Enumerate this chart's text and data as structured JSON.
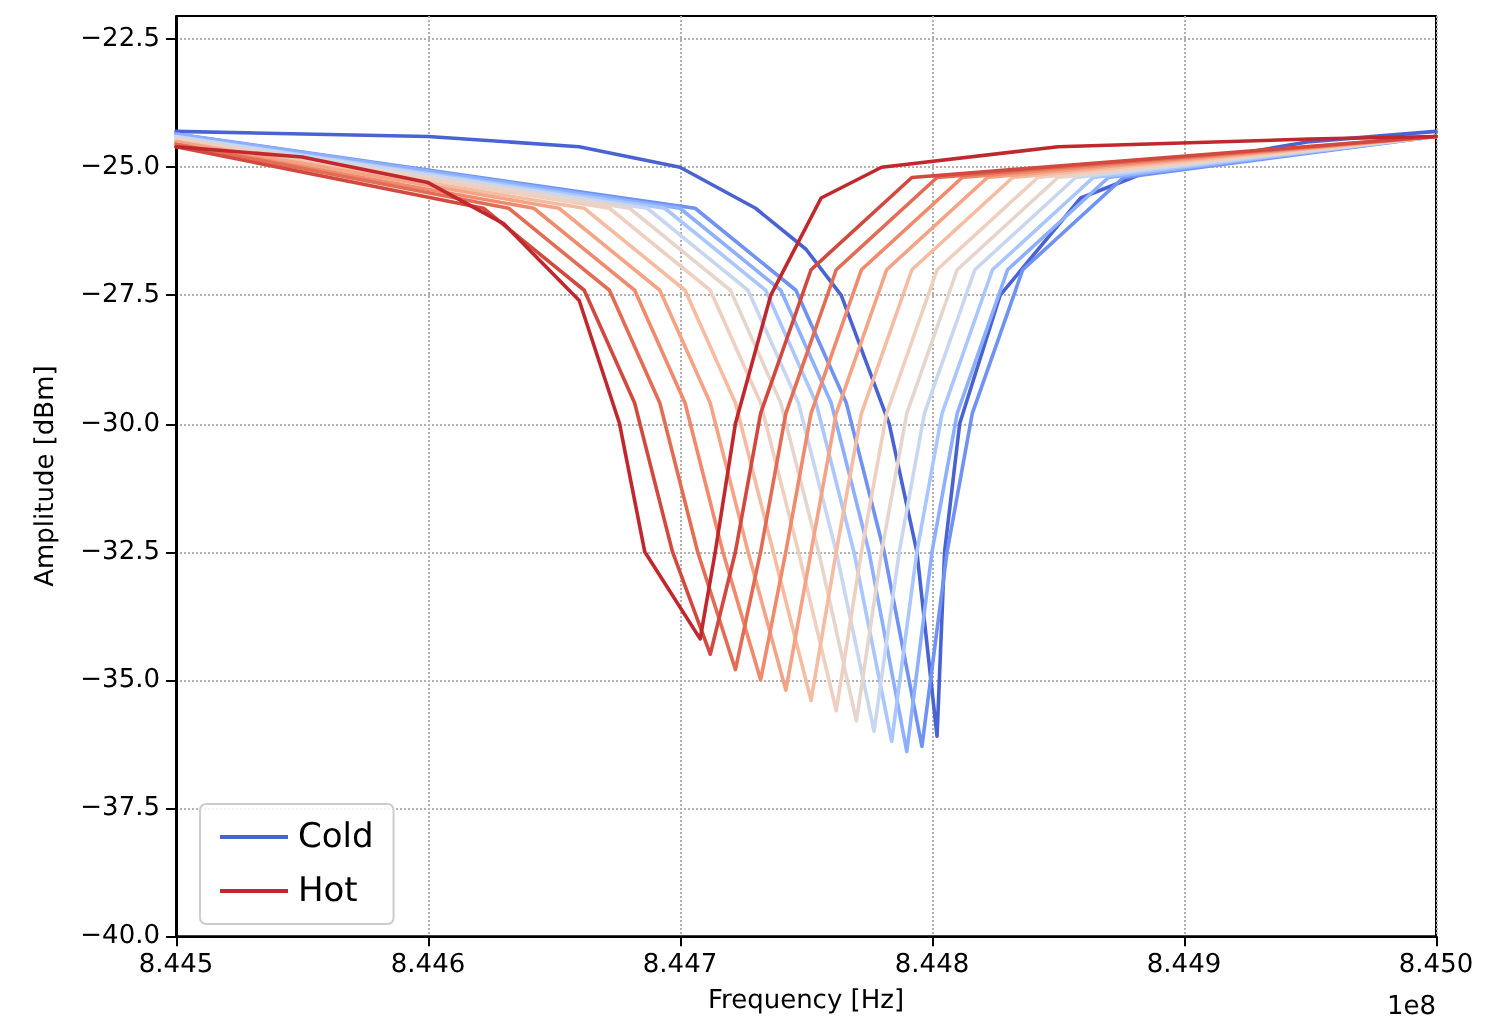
{
  "chart_data": {
    "type": "line",
    "xlabel": "Frequency [Hz]",
    "ylabel": "Amplitude [dBm]",
    "annotations": [
      "1e8"
    ],
    "xlim": [
      8.445,
      8.45
    ],
    "xticks": [
      8.445,
      8.446,
      8.447,
      8.448,
      8.449,
      {
        "value": 8.45,
        "label": "8.450"
      }
    ],
    "ylim": [
      -40,
      -22.05
    ],
    "yticks": [
      {
        "value": -40,
        "label": "−40.0"
      },
      {
        "value": -37.5,
        "label": "−37.5"
      },
      {
        "value": -35,
        "label": "−35.0"
      },
      {
        "value": -32.5,
        "label": "−32.5"
      },
      {
        "value": -30,
        "label": "−30.0"
      },
      {
        "value": -27.5,
        "label": "−27.5"
      },
      {
        "value": -25,
        "label": "−25.0"
      },
      {
        "value": -22.5,
        "label": "−22.5"
      }
    ],
    "grid": true,
    "legend": "bottom left",
    "marker": "none",
    "line_style": "solid",
    "series": [
      {
        "name": "Cold",
        "color": "#4a63d3",
        "x": [
          8.445,
          8.446,
          8.4466,
          8.447,
          8.4473,
          8.4475,
          8.44764,
          8.44783,
          8.44794,
          8.44802,
          8.44805,
          8.44811,
          8.44827,
          8.44859,
          8.4489,
          8.4495,
          8.45
        ],
        "values": [
          -24.3,
          -24.4,
          -24.6,
          -25.0,
          -25.8,
          -26.6,
          -27.5,
          -30.0,
          -32.5,
          -36.1,
          -32.5,
          -30.0,
          -27.5,
          -25.6,
          -25.0,
          -24.5,
          -24.3
        ]
      },
      {
        "color": "#6f92f3",
        "x": [
          8.445,
          8.44706,
          8.44746,
          8.44766,
          8.44781,
          8.44796,
          8.44806,
          8.44816,
          8.44836,
          8.44876,
          8.45
        ],
        "values": [
          -24.35,
          -25.8,
          -27.4,
          -29.6,
          -32.5,
          -36.3,
          -32.5,
          -29.8,
          -27.0,
          -25.2,
          -24.4
        ]
      },
      {
        "color": "#8caffe",
        "x": [
          8.445,
          8.447,
          8.4474,
          8.4476,
          8.44775,
          8.4479,
          8.448,
          8.4481,
          8.4483,
          8.4487,
          8.45
        ],
        "values": [
          -24.35,
          -25.8,
          -27.4,
          -29.6,
          -32.5,
          -36.4,
          -32.5,
          -29.8,
          -27.0,
          -25.2,
          -24.4
        ]
      },
      {
        "color": "#a9c6fd",
        "x": [
          8.445,
          8.44694,
          8.44734,
          8.44754,
          8.44769,
          8.44784,
          8.44794,
          8.44804,
          8.44824,
          8.44864,
          8.45
        ],
        "values": [
          -24.4,
          -25.8,
          -27.4,
          -29.6,
          -32.5,
          -36.2,
          -32.5,
          -29.8,
          -27.0,
          -25.2,
          -24.4
        ]
      },
      {
        "color": "#c8d7ef",
        "x": [
          8.445,
          8.44687,
          8.44727,
          8.44747,
          8.44762,
          8.44777,
          8.44787,
          8.44797,
          8.44817,
          8.44857,
          8.45
        ],
        "values": [
          -24.4,
          -25.8,
          -27.4,
          -29.6,
          -32.5,
          -36.0,
          -32.5,
          -29.8,
          -27.0,
          -25.2,
          -24.4
        ]
      },
      {
        "color": "#e6d5cb",
        "x": [
          8.445,
          8.4468,
          8.4472,
          8.4474,
          8.44755,
          8.4477,
          8.4478,
          8.4479,
          8.4481,
          8.4485,
          8.45
        ],
        "values": [
          -24.45,
          -25.8,
          -27.4,
          -29.6,
          -32.5,
          -35.8,
          -32.5,
          -29.8,
          -27.0,
          -25.2,
          -24.4
        ]
      },
      {
        "color": "#efcfbf",
        "x": [
          8.445,
          8.44672,
          8.44712,
          8.44732,
          8.44747,
          8.44762,
          8.44772,
          8.44782,
          8.44802,
          8.44842,
          8.45
        ],
        "values": [
          -24.45,
          -25.8,
          -27.4,
          -29.6,
          -32.5,
          -35.6,
          -32.5,
          -29.8,
          -27.0,
          -25.2,
          -24.4
        ]
      },
      {
        "color": "#f6bca1",
        "x": [
          8.445,
          8.44662,
          8.44702,
          8.44722,
          8.44737,
          8.44752,
          8.44762,
          8.44772,
          8.44792,
          8.44832,
          8.45
        ],
        "values": [
          -24.5,
          -25.8,
          -27.4,
          -29.6,
          -32.5,
          -35.4,
          -32.5,
          -29.8,
          -27.0,
          -25.2,
          -24.4
        ]
      },
      {
        "color": "#f5a385",
        "x": [
          8.445,
          8.44652,
          8.44692,
          8.44712,
          8.44727,
          8.44742,
          8.44752,
          8.44762,
          8.44782,
          8.44822,
          8.45
        ],
        "values": [
          -24.5,
          -25.8,
          -27.4,
          -29.6,
          -32.5,
          -35.2,
          -32.5,
          -29.8,
          -27.0,
          -25.2,
          -24.4
        ]
      },
      {
        "color": "#f08a6c",
        "x": [
          8.445,
          8.44642,
          8.44682,
          8.44702,
          8.44717,
          8.44732,
          8.44742,
          8.44752,
          8.44772,
          8.44812,
          8.45
        ],
        "values": [
          -24.55,
          -25.8,
          -27.4,
          -29.6,
          -32.5,
          -35.0,
          -32.5,
          -29.8,
          -27.0,
          -25.2,
          -24.4
        ]
      },
      {
        "color": "#e36c55",
        "x": [
          8.445,
          8.44632,
          8.44672,
          8.44692,
          8.44707,
          8.44722,
          8.44732,
          8.44742,
          8.44762,
          8.44802,
          8.45
        ],
        "values": [
          -24.55,
          -25.8,
          -27.4,
          -29.6,
          -32.5,
          -34.8,
          -32.5,
          -29.8,
          -27.0,
          -25.2,
          -24.4
        ]
      },
      {
        "color": "#d1493f",
        "x": [
          8.445,
          8.44622,
          8.44662,
          8.44682,
          8.44697,
          8.44712,
          8.44722,
          8.44732,
          8.44752,
          8.44792,
          8.45
        ],
        "values": [
          -24.6,
          -25.8,
          -27.4,
          -29.6,
          -32.5,
          -34.5,
          -32.5,
          -29.8,
          -27.0,
          -25.2,
          -24.4
        ]
      },
      {
        "name": "Hot",
        "color": "#c0282d",
        "x": [
          8.445,
          8.4455,
          8.446,
          8.4463,
          8.4466,
          8.44676,
          8.44686,
          8.44708,
          8.44714,
          8.44722,
          8.44736,
          8.44756,
          8.4478,
          8.4485,
          8.4495,
          8.45
        ],
        "values": [
          -24.6,
          -24.8,
          -25.3,
          -26.1,
          -27.6,
          -30.0,
          -32.5,
          -34.2,
          -32.5,
          -30.0,
          -27.5,
          -25.6,
          -25.0,
          -24.6,
          -24.45,
          -24.4
        ]
      }
    ]
  }
}
